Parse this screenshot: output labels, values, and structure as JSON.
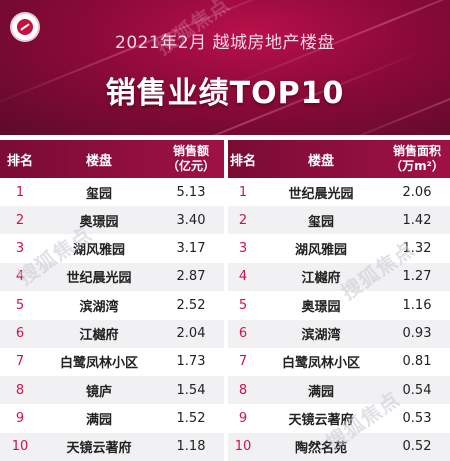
{
  "header": {
    "subtitle": "2021年2月 越城房地产楼盘",
    "title": "销售业绩TOP10"
  },
  "table": {
    "col_rank": "排名",
    "col_name": "楼盘",
    "col_sales_l1": "销售额",
    "col_sales_l2": "（亿元）",
    "col_area_l1": "销售面积",
    "col_area_l2": "（万m²）"
  },
  "watermark": "搜狐焦点",
  "chart_data": [
    {
      "type": "table",
      "title": "销售业绩TOP10",
      "columns": [
        "排名",
        "楼盘",
        "销售额（亿元）"
      ],
      "rows": [
        {
          "rank": "1",
          "name": "玺园",
          "value": "5.13"
        },
        {
          "rank": "2",
          "name": "奥璟园",
          "value": "3.40"
        },
        {
          "rank": "3",
          "name": "湖风雅园",
          "value": "3.17"
        },
        {
          "rank": "4",
          "name": "世纪晨光园",
          "value": "2.87"
        },
        {
          "rank": "5",
          "name": "滨湖湾",
          "value": "2.52"
        },
        {
          "rank": "6",
          "name": "江樾府",
          "value": "2.04"
        },
        {
          "rank": "7",
          "name": "白鹭凤林小区",
          "value": "1.73"
        },
        {
          "rank": "8",
          "name": "镜庐",
          "value": "1.54"
        },
        {
          "rank": "9",
          "name": "满园",
          "value": "1.52"
        },
        {
          "rank": "10",
          "name": "天镜云著府",
          "value": "1.18"
        }
      ]
    },
    {
      "type": "table",
      "title": "销售业绩TOP10",
      "columns": [
        "排名",
        "楼盘",
        "销售面积（万m²）"
      ],
      "rows": [
        {
          "rank": "1",
          "name": "世纪晨光园",
          "value": "2.06"
        },
        {
          "rank": "2",
          "name": "玺园",
          "value": "1.42"
        },
        {
          "rank": "3",
          "name": "湖风雅园",
          "value": "1.32"
        },
        {
          "rank": "4",
          "name": "江樾府",
          "value": "1.27"
        },
        {
          "rank": "5",
          "name": "奥璟园",
          "value": "1.16"
        },
        {
          "rank": "6",
          "name": "滨湖湾",
          "value": "0.93"
        },
        {
          "rank": "7",
          "name": "白鹭凤林小区",
          "value": "0.81"
        },
        {
          "rank": "8",
          "name": "满园",
          "value": "0.54"
        },
        {
          "rank": "9",
          "name": "天镜云著府",
          "value": "0.53"
        },
        {
          "rank": "10",
          "name": "陶然名苑",
          "value": "0.52"
        }
      ]
    }
  ]
}
